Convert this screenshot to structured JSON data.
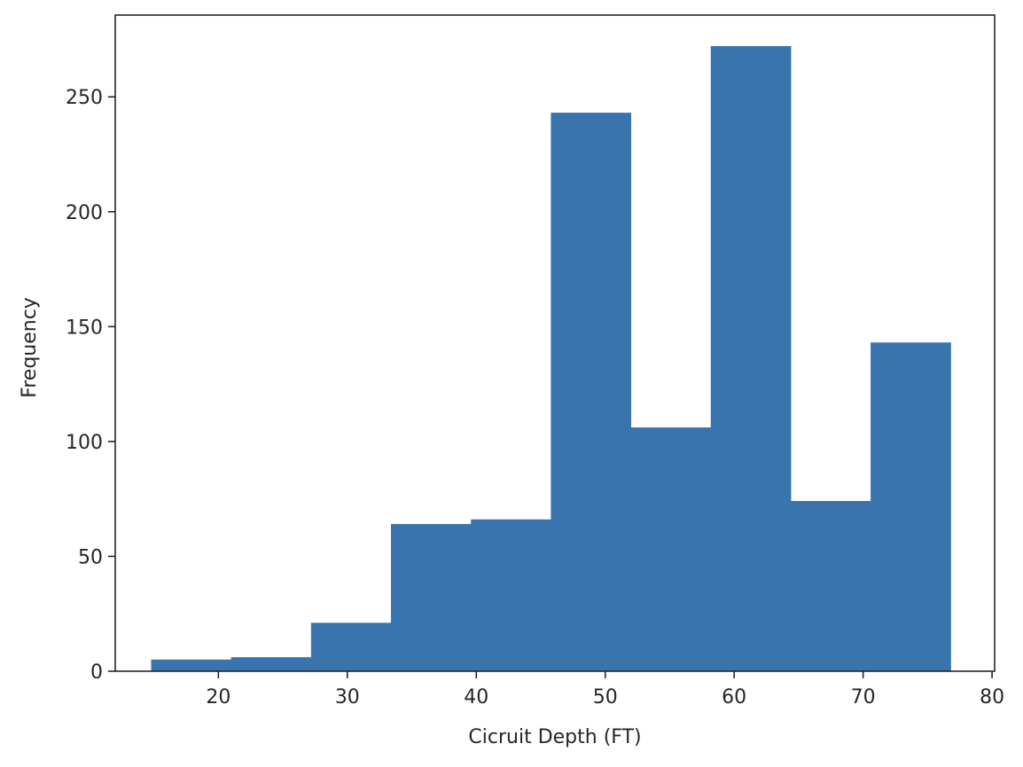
{
  "chart_data": {
    "type": "bar",
    "xlabel": "Cicruit Depth (FT)",
    "ylabel": "Frequency",
    "xlim": [
      12.0,
      80.2
    ],
    "ylim": [
      0,
      285.6
    ],
    "x_ticks": [
      20,
      30,
      40,
      50,
      60,
      70,
      80
    ],
    "y_ticks": [
      0,
      50,
      100,
      150,
      200,
      250
    ],
    "bar_color": "#3a74ae",
    "bins": [
      {
        "start": 14.8,
        "end": 21.0,
        "value": 5
      },
      {
        "start": 21.0,
        "end": 27.2,
        "value": 6
      },
      {
        "start": 27.2,
        "end": 33.4,
        "value": 21
      },
      {
        "start": 33.4,
        "end": 39.6,
        "value": 64
      },
      {
        "start": 39.6,
        "end": 45.8,
        "value": 66
      },
      {
        "start": 45.8,
        "end": 52.0,
        "value": 243
      },
      {
        "start": 52.0,
        "end": 58.2,
        "value": 106
      },
      {
        "start": 58.2,
        "end": 64.4,
        "value": 272
      },
      {
        "start": 64.4,
        "end": 70.6,
        "value": 74
      },
      {
        "start": 70.6,
        "end": 76.8,
        "value": 143
      }
    ],
    "grid": false,
    "legend": "none"
  }
}
